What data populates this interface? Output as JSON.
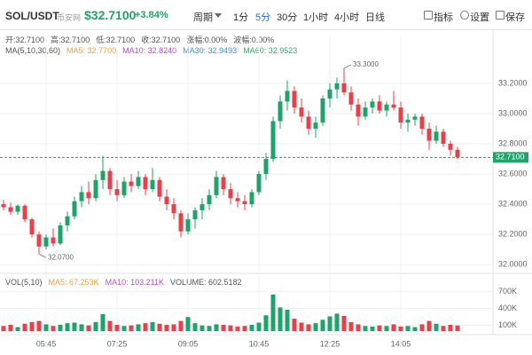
{
  "header": {
    "symbol": "SOL/USDT",
    "exchange": "币安网",
    "price": "$32.7100",
    "change": "+3.84%",
    "period_label": "周期",
    "intervals": [
      "1分",
      "5分",
      "30分",
      "1小时",
      "4小时",
      "日线"
    ],
    "selected_interval": "5分",
    "tools": [
      "指标",
      "设置",
      "保存"
    ]
  },
  "info": {
    "ohlc": [
      "开:32.7100",
      "高:32.7100",
      "低:32.7100",
      "收:32.7100",
      "涨幅:0.00%",
      "波幅:0.00%"
    ],
    "ma": [
      {
        "text": "MA(5,10,30,60)",
        "color": "#555555"
      },
      {
        "text": "MA5: 32.7700",
        "color": "#e8a33d"
      },
      {
        "text": "MA10: 32.8240",
        "color": "#b04fc8"
      },
      {
        "text": "MA30: 32.9493",
        "color": "#3b8fd9"
      },
      {
        "text": "MA60: 32.9523",
        "color": "#3aa86b"
      }
    ],
    "vol": [
      {
        "text": "VOL(5,10)",
        "color": "#555555"
      },
      {
        "text": "MA5: 67.253K",
        "color": "#e8a33d"
      },
      {
        "text": "MA10: 103.211K",
        "color": "#b04fc8"
      },
      {
        "text": "VOLUME: 602.5182",
        "color": "#555555"
      }
    ]
  },
  "chart_data": {
    "type": "candlestick",
    "up_color": "#1fa36b",
    "down_color": "#e5414a",
    "grid": true,
    "categories": [
      null,
      null,
      null,
      null,
      null,
      null,
      "05:45",
      null,
      null,
      null,
      null,
      null,
      null,
      null,
      null,
      null,
      "07:25",
      null,
      null,
      null,
      null,
      null,
      null,
      null,
      null,
      null,
      "09:05",
      null,
      null,
      null,
      null,
      null,
      null,
      null,
      null,
      null,
      "10:45",
      null,
      null,
      null,
      null,
      null,
      null,
      null,
      null,
      null,
      "12:25",
      null,
      null,
      null,
      null,
      null,
      null,
      null,
      null,
      null,
      "14:05",
      null,
      null,
      null,
      null,
      null,
      null,
      null,
      null
    ],
    "candles": [
      [
        32.4,
        32.43,
        32.36,
        32.38
      ],
      [
        32.38,
        32.41,
        32.33,
        32.35
      ],
      [
        32.35,
        32.4,
        32.33,
        32.39
      ],
      [
        32.39,
        32.4,
        32.28,
        32.3
      ],
      [
        32.3,
        32.31,
        32.18,
        32.2
      ],
      [
        32.2,
        32.22,
        32.07,
        32.12
      ],
      [
        32.12,
        32.2,
        32.1,
        32.18
      ],
      [
        32.18,
        32.24,
        32.12,
        32.14
      ],
      [
        32.14,
        32.28,
        32.13,
        32.26
      ],
      [
        32.26,
        32.35,
        32.22,
        32.32
      ],
      [
        32.32,
        32.45,
        32.3,
        32.42
      ],
      [
        32.42,
        32.52,
        32.38,
        32.48
      ],
      [
        32.48,
        32.55,
        32.4,
        32.44
      ],
      [
        32.44,
        32.6,
        32.42,
        32.56
      ],
      [
        32.56,
        32.72,
        32.5,
        32.62
      ],
      [
        32.62,
        32.64,
        32.46,
        32.5
      ],
      [
        32.5,
        32.56,
        32.42,
        32.46
      ],
      [
        32.46,
        32.58,
        32.44,
        32.55
      ],
      [
        32.55,
        32.6,
        32.48,
        32.52
      ],
      [
        32.52,
        32.62,
        32.5,
        32.58
      ],
      [
        32.58,
        32.6,
        32.46,
        32.5
      ],
      [
        32.5,
        32.64,
        32.48,
        32.56
      ],
      [
        32.56,
        32.58,
        32.42,
        32.45
      ],
      [
        32.45,
        32.5,
        32.36,
        32.4
      ],
      [
        32.4,
        32.44,
        32.3,
        32.34
      ],
      [
        32.34,
        32.36,
        32.18,
        32.22
      ],
      [
        32.22,
        32.34,
        32.2,
        32.3
      ],
      [
        32.3,
        32.38,
        32.24,
        32.36
      ],
      [
        32.36,
        32.44,
        32.3,
        32.4
      ],
      [
        32.4,
        32.5,
        32.36,
        32.46
      ],
      [
        32.46,
        32.62,
        32.44,
        32.58
      ],
      [
        32.58,
        32.6,
        32.46,
        32.5
      ],
      [
        32.5,
        32.54,
        32.4,
        32.44
      ],
      [
        32.44,
        32.48,
        32.38,
        32.42
      ],
      [
        32.42,
        32.46,
        32.36,
        32.4
      ],
      [
        32.4,
        32.5,
        32.38,
        32.48
      ],
      [
        32.48,
        32.62,
        32.46,
        32.6
      ],
      [
        32.6,
        32.74,
        32.56,
        32.7
      ],
      [
        32.7,
        32.98,
        32.68,
        32.95
      ],
      [
        32.95,
        33.12,
        32.9,
        33.08
      ],
      [
        33.08,
        33.22,
        33.02,
        33.15
      ],
      [
        33.15,
        33.18,
        33.0,
        33.04
      ],
      [
        33.04,
        33.1,
        32.94,
        32.98
      ],
      [
        32.98,
        33.02,
        32.86,
        32.9
      ],
      [
        32.9,
        32.98,
        32.84,
        32.94
      ],
      [
        32.94,
        33.12,
        32.92,
        33.1
      ],
      [
        33.1,
        33.2,
        33.04,
        33.16
      ],
      [
        33.16,
        33.24,
        33.1,
        33.2
      ],
      [
        33.2,
        33.3,
        33.12,
        33.14
      ],
      [
        33.14,
        33.18,
        33.02,
        33.06
      ],
      [
        33.06,
        33.1,
        32.92,
        32.98
      ],
      [
        32.98,
        33.08,
        32.96,
        33.04
      ],
      [
        33.04,
        33.1,
        33.0,
        33.08
      ],
      [
        33.08,
        33.12,
        33.0,
        33.02
      ],
      [
        33.02,
        33.08,
        32.98,
        33.06
      ],
      [
        33.06,
        33.15,
        33.02,
        33.04
      ],
      [
        33.04,
        33.08,
        32.9,
        32.94
      ],
      [
        32.94,
        33.0,
        32.88,
        32.96
      ],
      [
        32.96,
        33.0,
        32.92,
        32.98
      ],
      [
        32.98,
        33.0,
        32.86,
        32.9
      ],
      [
        32.9,
        32.94,
        32.76,
        32.82
      ],
      [
        32.82,
        32.92,
        32.8,
        32.88
      ],
      [
        32.88,
        32.9,
        32.78,
        32.8
      ],
      [
        32.8,
        32.82,
        32.72,
        32.76
      ],
      [
        32.76,
        32.78,
        32.7,
        32.71
      ]
    ],
    "volume": [
      90000,
      110000,
      70000,
      130000,
      160000,
      180000,
      120000,
      90000,
      110000,
      140000,
      150000,
      120000,
      100000,
      160000,
      300000,
      180000,
      110000,
      90000,
      100000,
      120000,
      140000,
      160000,
      130000,
      110000,
      120000,
      180000,
      250000,
      140000,
      100000,
      90000,
      120000,
      110000,
      100000,
      80000,
      90000,
      110000,
      150000,
      280000,
      650000,
      420000,
      380000,
      220000,
      150000,
      120000,
      140000,
      200000,
      260000,
      310000,
      270000,
      160000,
      120000,
      90000,
      80000,
      100000,
      90000,
      120000,
      80000,
      90000,
      70000,
      120000,
      180000,
      130000,
      90000,
      110000,
      100000
    ],
    "ylim": [
      31.96,
      33.37
    ],
    "yticks": [
      {
        "value": 32.0,
        "label": "32.0000"
      },
      {
        "value": 32.2,
        "label": "32.2000"
      },
      {
        "value": 32.4,
        "label": "32.4000"
      },
      {
        "value": 32.6,
        "label": "32.6000"
      },
      {
        "value": 32.8,
        "label": "32.8000"
      },
      {
        "value": 33.0,
        "label": "33.0000"
      },
      {
        "value": 33.2,
        "label": "33.2000"
      }
    ],
    "vol_ylim": [
      0,
      750000
    ],
    "vol_yticks": [
      {
        "value": 100000,
        "label": "100K"
      },
      {
        "value": 400000,
        "label": "400K"
      },
      {
        "value": 700000,
        "label": "700K"
      }
    ],
    "last": {
      "value": 32.71,
      "label": "32.7100"
    },
    "high_note": {
      "value": 33.3,
      "label": "33.3000"
    },
    "low_note": {
      "value": 32.07,
      "label": "32.0700"
    }
  }
}
